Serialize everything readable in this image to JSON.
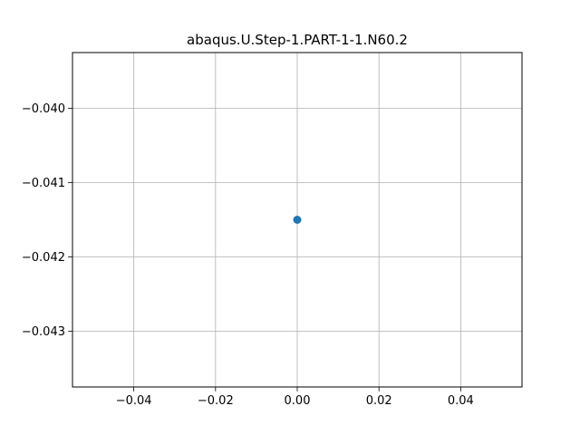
{
  "chart_data": {
    "type": "scatter",
    "title": "abaqus.U.Step-1.PART-1-1.N60.2",
    "xlabel": "",
    "ylabel": "",
    "xlim": [
      -0.055,
      0.055
    ],
    "ylim": [
      -0.04375,
      -0.03925
    ],
    "x_ticks": [
      -0.04,
      -0.02,
      0.0,
      0.02,
      0.04
    ],
    "x_tick_labels": [
      "−0.04",
      "−0.02",
      "0.00",
      "0.02",
      "0.04"
    ],
    "y_ticks": [
      -0.04,
      -0.041,
      -0.042,
      -0.043
    ],
    "y_tick_labels": [
      "−0.040",
      "−0.041",
      "−0.042",
      "−0.043"
    ],
    "grid": true,
    "series": [
      {
        "x": [
          0.0
        ],
        "y": [
          -0.0415
        ],
        "color": "#1f77b4"
      }
    ]
  }
}
